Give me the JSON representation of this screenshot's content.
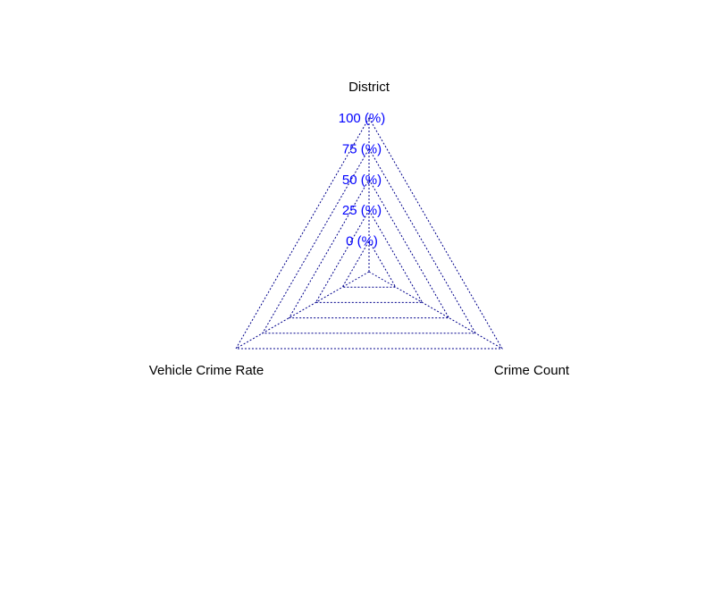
{
  "chart_data": {
    "type": "radar",
    "axes": [
      "District",
      "Crime Count",
      "Vehicle Crime Rate"
    ],
    "ticks": [
      0,
      25,
      50,
      75,
      100
    ],
    "tick_labels": [
      "0 (%)",
      "25 (%)",
      "50 (%)",
      "75 (%)",
      "100 (%)"
    ],
    "range": [
      0,
      100
    ],
    "grid_color": "#00008b",
    "label_color": "#0000ff",
    "series": []
  }
}
